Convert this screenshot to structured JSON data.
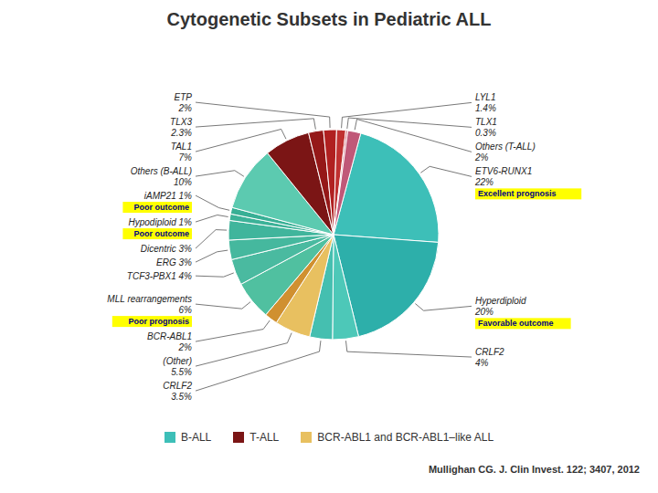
{
  "chart_data": {
    "type": "pie",
    "title": "Cytogenetic Subsets in Pediatric ALL",
    "categories": [
      "ETV6-RUNX1\n22%",
      "Hyperdiploid\n20%",
      "CRLF2\n4%",
      "CRLF2\n3.5%",
      "(Other)\n5.5%",
      "BCR-ABL1\n2%",
      "MLL rearrangements\n6%",
      "TCF3-PBX1 4%",
      "ERG 3%",
      "Dicentric 3%",
      "Hypodiploid 1%",
      "iAMP21 1%",
      "Others (B-ALL)\n10%",
      "TAL1\n7%",
      "TLX3\n2.3%",
      "ETP\n2%",
      "LYL1\n1.4%",
      "TLX1\n0.3%",
      "Others (T-ALL)\n2%"
    ],
    "values": [
      22.0,
      20.0,
      4.0,
      3.5,
      5.5,
      2.0,
      6.0,
      4.0,
      3.0,
      3.0,
      1.0,
      1.0,
      10.0,
      7.0,
      2.3,
      2.0,
      1.4,
      0.3,
      2.0
    ],
    "colors": [
      "#3DBFB8",
      "#2DAFAA",
      "#4DC8B8",
      "#45BFB0",
      "#E8C060",
      "#D09030",
      "#50C0A0",
      "#4ABAA0",
      "#45B89E",
      "#40B59C",
      "#3CB298",
      "#38AF95",
      "#5CCAB0",
      "#7B1515",
      "#951818",
      "#B02020",
      "#C03030",
      "#D06070",
      "#C05878"
    ],
    "legend_entries": [
      {
        "name": "B-ALL",
        "color": "#3DBFB8"
      },
      {
        "name": "T-ALL",
        "color": "#7B1515"
      },
      {
        "name": "BCR-ABL1 and BCR-ABL1–like ALL",
        "color": "#E8C060"
      }
    ],
    "annotations": [
      "Excellent prognosis",
      "Favorable outcome",
      "Poor outcome",
      "Poor outcome",
      "Poor prognosis"
    ],
    "footer": "Mullighan CG. J. Clin Invest. 122; 3407, 2012"
  }
}
